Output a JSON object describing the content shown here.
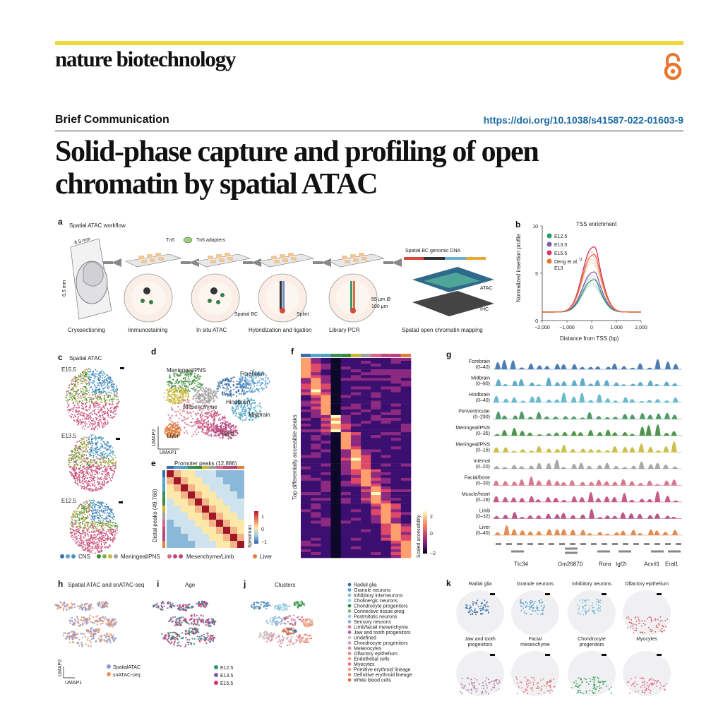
{
  "header": {
    "journal": "nature biotechnology",
    "article_type": "Brief Communication",
    "doi": "https://doi.org/10.1038/s41587-022-01603-9",
    "title_line1": "Solid-phase capture and profiling of open",
    "title_line2": "chromatin by spatial ATAC"
  },
  "colors": {
    "accent_bar": "#f0da3a",
    "open_access": "#e8762c",
    "doi": "#1b6aa5"
  },
  "panel_a": {
    "label": "a",
    "title": "Spatial ATAC workflow",
    "dim_top": "6.5 mm",
    "dim_side": "6.5 mm",
    "tn5": "Tn5",
    "tn5_adapters": "Tn5 adapters",
    "spatial_bc": "Spatial BC",
    "splint": "Splint",
    "spatial_bc_genomic": "Spatial BC   genomic DNA",
    "spot_size_1": "55 μm Ø",
    "spot_size_2": "100 μm",
    "atac": "ATAC",
    "ihc": "IHC",
    "steps": [
      "Cryosectioning",
      "Immunostaining",
      "In situ ATAC",
      "Hybridization and ligation",
      "Library PCR",
      "Spatial open chromatin mapping"
    ]
  },
  "panel_b": {
    "label": "b",
    "chart_data": {
      "type": "line",
      "title": "TSS enrichment",
      "xlabel": "Distance from TSS (bp)",
      "ylabel": "Normalized insertion profile",
      "xlim": [
        -2000,
        2000
      ],
      "ylim": [
        0,
        10
      ],
      "x_ticks": [
        "−2,000",
        "−1,000",
        "0",
        "1,000",
        "2,000"
      ],
      "y_ticks": [
        "0",
        "5",
        "10"
      ],
      "legend_position": "top-right",
      "series": [
        {
          "name": "E12.5",
          "color": "#2a9a6e",
          "peak": 4.2
        },
        {
          "name": "E13.5",
          "color": "#7b5ea7",
          "peak": 5.0
        },
        {
          "name": "E15.5",
          "color": "#d6336c",
          "peak": 7.6
        },
        {
          "name": "Deng et al. E13",
          "color": "#e8762c",
          "peak": 6.8
        }
      ],
      "baseline": 0.9
    },
    "legend_extra_label": "E13",
    "legend_deng_label": "Deng et al.",
    "legend_ref": "11"
  },
  "panel_c": {
    "label": "c",
    "title": "Spatial ATAC",
    "ages": [
      "E15.5",
      "E13.5",
      "E12.5"
    ]
  },
  "panel_d": {
    "label": "d",
    "clusters": [
      "Meningeal/PNS",
      "Forebrain",
      "Hindbrain",
      "Mesenchyme",
      "Midbrain",
      "Liver",
      "Limb"
    ],
    "axis_x": "UMAP2",
    "axis_y": "UMAP1"
  },
  "panel_e": {
    "label": "e",
    "title": "Promoter peaks (12,886)",
    "ylabel": "Distal peaks (49,768)",
    "scale_label": "Spearman",
    "scale_ticks": [
      "1",
      "0",
      "−1"
    ]
  },
  "panel_f": {
    "label": "f",
    "ylabel": "Top differentially accessible peaks",
    "scale_label": "Scaled accessibility",
    "scale_ticks": [
      "2",
      "0",
      "−2"
    ]
  },
  "panel_g": {
    "label": "g",
    "tracks": [
      {
        "name": "Forebrain",
        "range": "(0–40)",
        "color": "#3a6fa8"
      },
      {
        "name": "Midbrain",
        "range": "(0–80)",
        "color": "#4ea3c4"
      },
      {
        "name": "Hindbrain",
        "range": "(0–40)",
        "color": "#5ab4c8"
      },
      {
        "name": "Periventricular",
        "range": "(0–290)",
        "color": "#3d8f5a"
      },
      {
        "name": "Meningeal/PNS",
        "range": "(0–35)",
        "color": "#3d8a3a"
      },
      {
        "name": "Meningeal/PNS",
        "range": "(0–15)",
        "color": "#c8b83a"
      },
      {
        "name": "Internal",
        "range": "(0–20)",
        "color": "#a0a0a0"
      },
      {
        "name": "Facial/bone",
        "range": "(0–30)",
        "color": "#d66a86"
      },
      {
        "name": "Muscle/heart",
        "range": "(0–16)",
        "color": "#c24a7a"
      },
      {
        "name": "Limb",
        "range": "(0–32)",
        "color": "#b5457d"
      },
      {
        "name": "Liver",
        "range": "(0–40)",
        "color": "#e08040"
      }
    ],
    "genes": [
      "Ttc34",
      "Gm26870",
      "Rora",
      "Igf2r",
      "Acvrl1",
      "Eral1"
    ]
  },
  "legend_row": {
    "items": [
      "CNS",
      "Meningeal/PNS",
      "Mesenchyme/Limb",
      "Liver"
    ]
  },
  "panel_h": {
    "label": "h",
    "title": "Spatial ATAC and snATAC-seq",
    "legend": [
      "SpatialATAC",
      "snATAC-seq"
    ],
    "axis_x": "UMAP1",
    "axis_y": "UMAP2"
  },
  "panel_i": {
    "label": "i",
    "title": "Age",
    "legend": [
      "E12.5",
      "E13.5",
      "E15.5"
    ]
  },
  "panel_j": {
    "label": "j",
    "title": "Clusters",
    "legend": [
      {
        "name": "Radial glia",
        "color": "#3a6fa8"
      },
      {
        "name": "Granule neurons",
        "color": "#5aa0d0"
      },
      {
        "name": "Inhibitory interneurons",
        "color": "#7ec0d8"
      },
      {
        "name": "Cholinergic neurons",
        "color": "#9ed0e0"
      },
      {
        "name": "Chondrocyte progenitors",
        "color": "#2a8a50"
      },
      {
        "name": "Connective tissue prog.",
        "color": "#7ab87a"
      },
      {
        "name": "Postmitotic neurons",
        "color": "#a0c8e0"
      },
      {
        "name": "Sensory neurons",
        "color": "#8ab0d0"
      },
      {
        "name": "Limb/facial mesenchyme",
        "color": "#e0808a"
      },
      {
        "name": "Jaw and tooth progenitors",
        "color": "#b06aa0"
      },
      {
        "name": "Undefined",
        "color": "#c8c8c8"
      },
      {
        "name": "Chondrocyte progenitors",
        "color": "#d8a0b0"
      },
      {
        "name": "Melanocytes",
        "color": "#c890a0"
      },
      {
        "name": "Olfactory epithelium",
        "color": "#e09090"
      },
      {
        "name": "Endothelial cells",
        "color": "#e8a878"
      },
      {
        "name": "Myocytes",
        "color": "#e07898"
      },
      {
        "name": "Primitive erythroid lineage",
        "color": "#f0a890"
      },
      {
        "name": "Definitive erythroid lineage",
        "color": "#e89070"
      },
      {
        "name": "White blood cells",
        "color": "#e06a40"
      }
    ]
  },
  "panel_k": {
    "label": "k",
    "maps": [
      {
        "name_line1": "Radial glia",
        "name_line2": "",
        "color": "#3a6fa8"
      },
      {
        "name_line1": "Granule neurons",
        "name_line2": "",
        "color": "#5aa0d0"
      },
      {
        "name_line1": "Inhibitory neurons",
        "name_line2": "",
        "color": "#7ec0d8"
      },
      {
        "name_line1": "Olfactory epithelium",
        "name_line2": "",
        "color": "#d65a5a"
      },
      {
        "name_line1": "Jaw and tooth",
        "name_line2": "progenitors",
        "color": "#b06aa0"
      },
      {
        "name_line1": "Facial",
        "name_line2": "mesenchyme",
        "color": "#e07070"
      },
      {
        "name_line1": "Chondrocyte",
        "name_line2": "progenitors",
        "color": "#2a9a50"
      },
      {
        "name_line1": "Myocytes",
        "name_line2": "",
        "color": "#e06a8a"
      }
    ]
  }
}
